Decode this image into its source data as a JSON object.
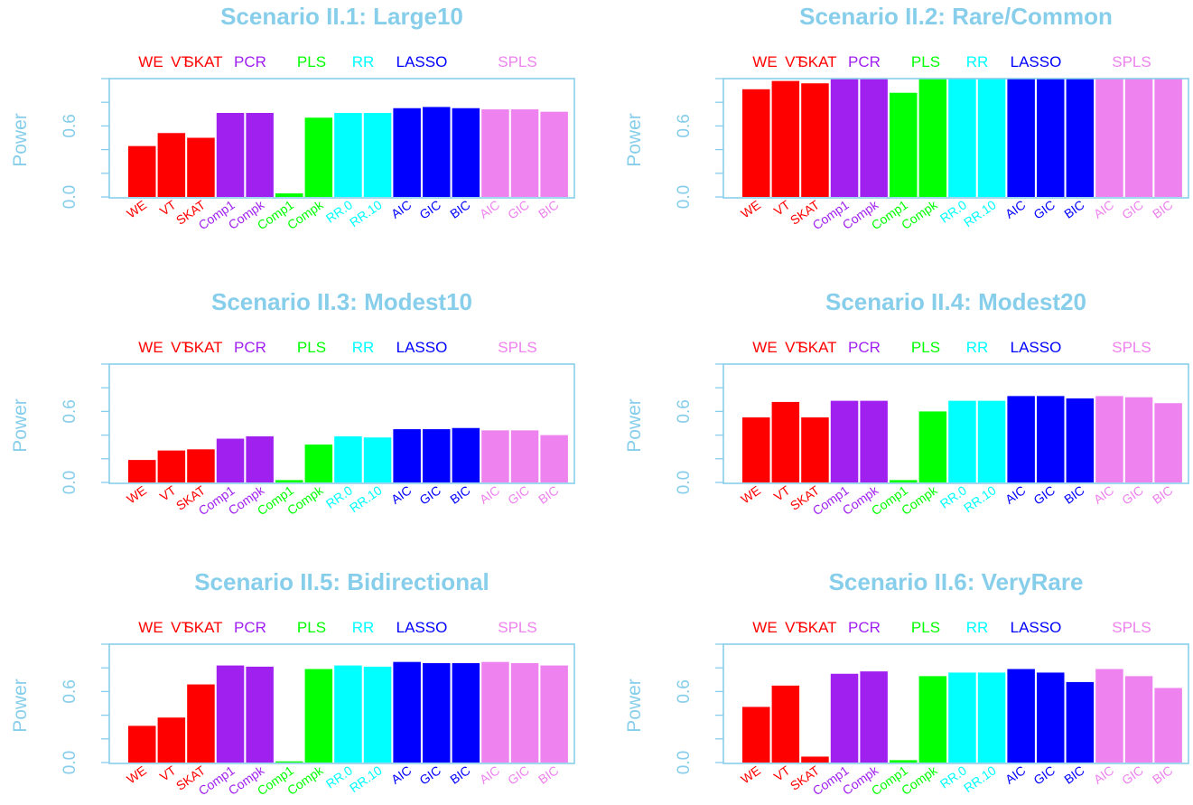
{
  "colors": {
    "axis": "#87CEEB",
    "title": "#87CEEB",
    "WE": "#FF0000",
    "VT": "#FF0000",
    "SKAT": "#FF0000",
    "PCR": "#A020F0",
    "PLS": "#00FF00",
    "RR": "#00FFFF",
    "LASSO": "#0000FF",
    "SPLS": "#EE82EE"
  },
  "chart_data": [
    {
      "type": "bar",
      "title": "Scenario II.1: Large10",
      "ylabel": "Power",
      "ylim": [
        0,
        1
      ],
      "yticks": [
        "0.0",
        "0.6"
      ],
      "groups": [
        "WE",
        "VT",
        "SKAT",
        "PCR",
        "PLS",
        "RR",
        "LASSO",
        "SPLS"
      ],
      "categories": [
        "WE",
        "VT",
        "SKAT",
        "Comp1",
        "Compk",
        "Comp1",
        "Compk",
        "RR.0",
        "RR.10",
        "AIC",
        "GIC",
        "BIC",
        "AIC",
        "GIC",
        "BIC"
      ],
      "category_groups": [
        "WE",
        "VT",
        "SKAT",
        "PCR",
        "PCR",
        "PLS",
        "PLS",
        "RR",
        "RR",
        "LASSO",
        "LASSO",
        "LASSO",
        "SPLS",
        "SPLS",
        "SPLS"
      ],
      "values": [
        0.43,
        0.54,
        0.5,
        0.71,
        0.71,
        0.03,
        0.67,
        0.71,
        0.71,
        0.75,
        0.76,
        0.75,
        0.74,
        0.74,
        0.72
      ]
    },
    {
      "type": "bar",
      "title": "Scenario II.2: Rare/Common",
      "ylabel": "Power",
      "ylim": [
        0,
        1
      ],
      "yticks": [
        "0.0",
        "0.6"
      ],
      "groups": [
        "WE",
        "VT",
        "SKAT",
        "PCR",
        "PLS",
        "RR",
        "LASSO",
        "SPLS"
      ],
      "categories": [
        "WE",
        "VT",
        "SKAT",
        "Comp1",
        "Compk",
        "Comp1",
        "Compk",
        "RR.0",
        "RR.10",
        "AIC",
        "GIC",
        "BIC",
        "AIC",
        "GIC",
        "BIC"
      ],
      "category_groups": [
        "WE",
        "VT",
        "SKAT",
        "PCR",
        "PCR",
        "PLS",
        "PLS",
        "RR",
        "RR",
        "LASSO",
        "LASSO",
        "LASSO",
        "SPLS",
        "SPLS",
        "SPLS"
      ],
      "values": [
        0.91,
        0.98,
        0.96,
        1.0,
        1.0,
        0.88,
        1.0,
        1.0,
        1.0,
        1.0,
        1.0,
        1.0,
        1.0,
        1.0,
        1.0
      ]
    },
    {
      "type": "bar",
      "title": "Scenario II.3: Modest10",
      "ylabel": "Power",
      "ylim": [
        0,
        1
      ],
      "yticks": [
        "0.0",
        "0.6"
      ],
      "groups": [
        "WE",
        "VT",
        "SKAT",
        "PCR",
        "PLS",
        "RR",
        "LASSO",
        "SPLS"
      ],
      "categories": [
        "WE",
        "VT",
        "SKAT",
        "Comp1",
        "Compk",
        "Comp1",
        "Compk",
        "RR.0",
        "RR.10",
        "AIC",
        "GIC",
        "BIC",
        "AIC",
        "GIC",
        "BIC"
      ],
      "category_groups": [
        "WE",
        "VT",
        "SKAT",
        "PCR",
        "PCR",
        "PLS",
        "PLS",
        "RR",
        "RR",
        "LASSO",
        "LASSO",
        "LASSO",
        "SPLS",
        "SPLS",
        "SPLS"
      ],
      "values": [
        0.19,
        0.27,
        0.28,
        0.37,
        0.39,
        0.02,
        0.32,
        0.39,
        0.38,
        0.45,
        0.45,
        0.46,
        0.44,
        0.44,
        0.4
      ]
    },
    {
      "type": "bar",
      "title": "Scenario II.4: Modest20",
      "ylabel": "Power",
      "ylim": [
        0,
        1
      ],
      "yticks": [
        "0.0",
        "0.6"
      ],
      "groups": [
        "WE",
        "VT",
        "SKAT",
        "PCR",
        "PLS",
        "RR",
        "LASSO",
        "SPLS"
      ],
      "categories": [
        "WE",
        "VT",
        "SKAT",
        "Comp1",
        "Compk",
        "Comp1",
        "Compk",
        "RR.0",
        "RR.10",
        "AIC",
        "GIC",
        "BIC",
        "AIC",
        "GIC",
        "BIC"
      ],
      "category_groups": [
        "WE",
        "VT",
        "SKAT",
        "PCR",
        "PCR",
        "PLS",
        "PLS",
        "RR",
        "RR",
        "LASSO",
        "LASSO",
        "LASSO",
        "SPLS",
        "SPLS",
        "SPLS"
      ],
      "values": [
        0.55,
        0.68,
        0.55,
        0.69,
        0.69,
        0.02,
        0.6,
        0.69,
        0.69,
        0.73,
        0.73,
        0.71,
        0.73,
        0.72,
        0.67
      ]
    },
    {
      "type": "bar",
      "title": "Scenario II.5: Bidirectional",
      "ylabel": "Power",
      "ylim": [
        0,
        1
      ],
      "yticks": [
        "0.0",
        "0.6"
      ],
      "groups": [
        "WE",
        "VT",
        "SKAT",
        "PCR",
        "PLS",
        "RR",
        "LASSO",
        "SPLS"
      ],
      "categories": [
        "WE",
        "VT",
        "SKAT",
        "Comp1",
        "Compk",
        "Comp1",
        "Compk",
        "RR.0",
        "RR.10",
        "AIC",
        "GIC",
        "BIC",
        "AIC",
        "GIC",
        "BIC"
      ],
      "category_groups": [
        "WE",
        "VT",
        "SKAT",
        "PCR",
        "PCR",
        "PLS",
        "PLS",
        "RR",
        "RR",
        "LASSO",
        "LASSO",
        "LASSO",
        "SPLS",
        "SPLS",
        "SPLS"
      ],
      "values": [
        0.31,
        0.38,
        0.66,
        0.82,
        0.81,
        0.01,
        0.79,
        0.82,
        0.81,
        0.85,
        0.84,
        0.84,
        0.85,
        0.84,
        0.82
      ]
    },
    {
      "type": "bar",
      "title": "Scenario II.6: VeryRare",
      "ylabel": "Power",
      "ylim": [
        0,
        1
      ],
      "yticks": [
        "0.0",
        "0.6"
      ],
      "groups": [
        "WE",
        "VT",
        "SKAT",
        "PCR",
        "PLS",
        "RR",
        "LASSO",
        "SPLS"
      ],
      "categories": [
        "WE",
        "VT",
        "SKAT",
        "Comp1",
        "Compk",
        "Comp1",
        "Compk",
        "RR.0",
        "RR.10",
        "AIC",
        "GIC",
        "BIC",
        "AIC",
        "GIC",
        "BIC"
      ],
      "category_groups": [
        "WE",
        "VT",
        "SKAT",
        "PCR",
        "PCR",
        "PLS",
        "PLS",
        "RR",
        "RR",
        "LASSO",
        "LASSO",
        "LASSO",
        "SPLS",
        "SPLS",
        "SPLS"
      ],
      "values": [
        0.47,
        0.65,
        0.05,
        0.75,
        0.77,
        0.02,
        0.73,
        0.76,
        0.76,
        0.79,
        0.76,
        0.68,
        0.79,
        0.73,
        0.63
      ]
    }
  ]
}
